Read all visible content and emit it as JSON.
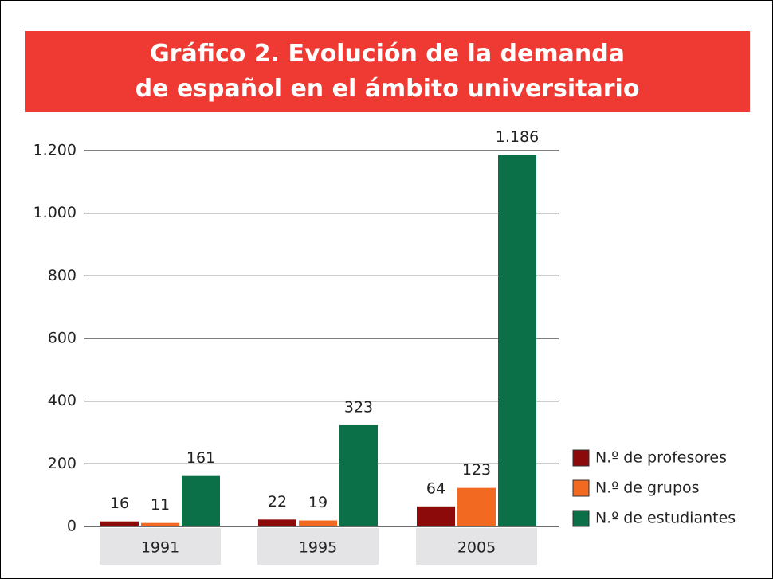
{
  "chart_data": {
    "type": "bar",
    "title": "Gráfico 2. Evolución de la demanda de español en el ámbito universitario",
    "categories": [
      "1991",
      "1995",
      "2005"
    ],
    "series": [
      {
        "name": "N.º de profesores",
        "color": "#8c0a0a",
        "values": [
          16,
          22,
          64
        ]
      },
      {
        "name": "N.º de grupos",
        "color": "#f26a21",
        "values": [
          11,
          19,
          123
        ]
      },
      {
        "name": "N.º de estudiantes",
        "color": "#0b7048",
        "values": [
          161,
          323,
          1186
        ],
        "value_labels": [
          "161",
          "323",
          "1.186"
        ]
      }
    ],
    "ylim": [
      0,
      1200
    ],
    "yticks": [
      0,
      200,
      400,
      600,
      800,
      {
        "value": 1000,
        "label": "1.000"
      },
      {
        "value": 1200,
        "label": "1.200"
      }
    ],
    "grid": true,
    "legend": "right"
  }
}
